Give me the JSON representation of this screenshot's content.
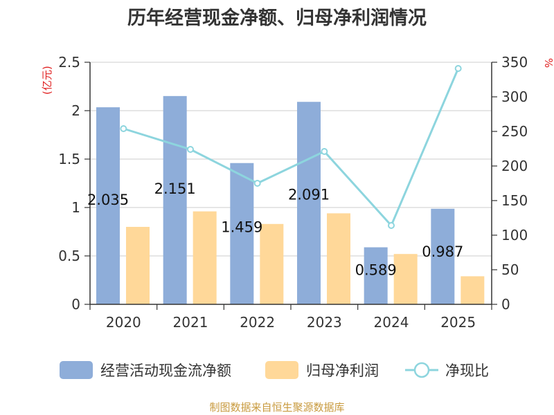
{
  "chart_data": {
    "type": "bar",
    "title": "历年经营现金净额、归母净利润情况",
    "categories": [
      "2020",
      "2021",
      "2022",
      "2023",
      "2024",
      "2025"
    ],
    "y_left": {
      "unit_label": "(亿元)",
      "ylim": [
        0,
        2.5
      ],
      "ticks": [
        "0",
        "0.5",
        "1",
        "1.5",
        "2",
        "2.5"
      ]
    },
    "y_right": {
      "unit_label": "%",
      "ylim": [
        0,
        350
      ],
      "ticks": [
        "0",
        "50",
        "100",
        "150",
        "200",
        "250",
        "300",
        "350"
      ]
    },
    "grid": true,
    "legend_position": "bottom",
    "series": [
      {
        "name": "经营活动现金流净额",
        "type": "bar",
        "axis": "left",
        "color": "#8eadd9",
        "values": [
          2.035,
          2.151,
          1.459,
          2.091,
          0.589,
          0.987
        ],
        "labels": [
          "2.035",
          "2.151",
          "1.459",
          "2.091",
          "0.589",
          "0.987"
        ]
      },
      {
        "name": "归母净利润",
        "type": "bar",
        "axis": "left",
        "color": "#ffd899",
        "values": [
          0.8,
          0.96,
          0.83,
          0.94,
          0.52,
          0.29
        ]
      },
      {
        "name": "净现比",
        "type": "line",
        "axis": "right",
        "color": "#8dd5de",
        "values": [
          254,
          224,
          175,
          221,
          114,
          341
        ]
      }
    ]
  },
  "footer": {
    "source": "制图数据来自恒生聚源数据库"
  }
}
